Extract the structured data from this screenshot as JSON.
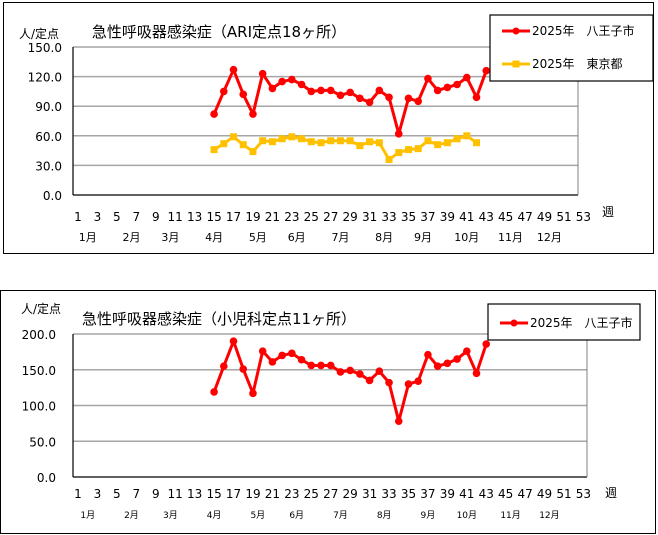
{
  "chart_data": [
    {
      "type": "line",
      "title": "急性呼吸器感染症（ARI定点18ヶ所）",
      "ylabel": "人/定点",
      "xlabel": "週",
      "ylim": [
        0,
        150
      ],
      "yticks": [
        "0.0",
        "30.0",
        "60.0",
        "90.0",
        "120.0",
        "150.0"
      ],
      "xticks": [
        "1",
        "3",
        "5",
        "7",
        "9",
        "11",
        "13",
        "15",
        "17",
        "19",
        "21",
        "23",
        "25",
        "27",
        "29",
        "31",
        "33",
        "35",
        "37",
        "39",
        "41",
        "43",
        "45",
        "47",
        "49",
        "51",
        "53"
      ],
      "months": [
        {
          "label": "1月",
          "week": 2
        },
        {
          "label": "2月",
          "week": 6.5
        },
        {
          "label": "3月",
          "week": 10.5
        },
        {
          "label": "4月",
          "week": 15
        },
        {
          "label": "5月",
          "week": 19.5
        },
        {
          "label": "6月",
          "week": 23.5
        },
        {
          "label": "7月",
          "week": 28
        },
        {
          "label": "8月",
          "week": 32.5
        },
        {
          "label": "9月",
          "week": 36.5
        },
        {
          "label": "10月",
          "week": 41
        },
        {
          "label": "11月",
          "week": 45.5
        },
        {
          "label": "12月",
          "week": 49.5
        }
      ],
      "grid": true,
      "legend_position": "top-right",
      "x": [
        15,
        16,
        17,
        18,
        19,
        20,
        21,
        22,
        23,
        24,
        25,
        26,
        27,
        28,
        29,
        30,
        31,
        32,
        33,
        34,
        35,
        36,
        37,
        38,
        39,
        40,
        41,
        42,
        43
      ],
      "series": [
        {
          "name": "2025年　八王子市",
          "color": "#ff0000",
          "marker": "circle",
          "values": [
            82,
            105,
            127,
            102,
            82,
            123,
            108,
            115,
            117,
            112,
            105,
            106,
            106,
            101,
            104,
            98,
            94,
            106,
            99,
            62,
            98,
            95,
            118,
            106,
            109,
            112,
            119,
            99,
            126
          ]
        },
        {
          "name": "2025年　東京都",
          "color": "#ffc000",
          "marker": "square",
          "values": [
            46,
            52,
            59,
            51,
            44,
            55,
            54,
            57,
            59,
            57,
            54,
            53,
            55,
            55,
            55,
            50,
            54,
            53,
            36,
            43,
            46,
            47,
            55,
            51,
            53,
            57,
            60,
            53,
            null
          ]
        }
      ]
    },
    {
      "type": "line",
      "title": "急性呼吸器感染症（小児科定点11ヶ所）",
      "ylabel": "人/定点",
      "xlabel": "週",
      "ylim": [
        0,
        200
      ],
      "yticks": [
        "0.0",
        "50.0",
        "100.0",
        "150.0",
        "200.0"
      ],
      "xticks": [
        "1",
        "3",
        "5",
        "7",
        "9",
        "11",
        "13",
        "15",
        "17",
        "19",
        "21",
        "23",
        "25",
        "27",
        "29",
        "31",
        "33",
        "35",
        "37",
        "39",
        "41",
        "43",
        "45",
        "47",
        "49",
        "51",
        "53"
      ],
      "months": [
        {
          "label": "1月",
          "week": 2
        },
        {
          "label": "2月",
          "week": 6.5
        },
        {
          "label": "3月",
          "week": 10.5
        },
        {
          "label": "4月",
          "week": 15
        },
        {
          "label": "5月",
          "week": 19.5
        },
        {
          "label": "6月",
          "week": 23.5
        },
        {
          "label": "7月",
          "week": 28
        },
        {
          "label": "8月",
          "week": 32.5
        },
        {
          "label": "9月",
          "week": 37
        },
        {
          "label": "10月",
          "week": 41
        },
        {
          "label": "11月",
          "week": 45.5
        },
        {
          "label": "12月",
          "week": 49.5
        }
      ],
      "grid": true,
      "legend_position": "top-right",
      "x": [
        15,
        16,
        17,
        18,
        19,
        20,
        21,
        22,
        23,
        24,
        25,
        26,
        27,
        28,
        29,
        30,
        31,
        32,
        33,
        34,
        35,
        36,
        37,
        38,
        39,
        40,
        41,
        42,
        43
      ],
      "series": [
        {
          "name": "2025年　八王子市",
          "color": "#ff0000",
          "marker": "circle",
          "values": [
            119,
            155,
            190,
            151,
            117,
            176,
            161,
            170,
            173,
            164,
            156,
            156,
            156,
            147,
            149,
            144,
            135,
            148,
            132,
            78,
            130,
            134,
            171,
            155,
            159,
            165,
            176,
            145,
            186
          ]
        }
      ]
    }
  ],
  "charts": {
    "c1": {
      "title": "急性呼吸器感染症（ARI定点18ヶ所）",
      "ylabel": "人/定点",
      "xlabel": "週",
      "legend": [
        "2025年　八王子市",
        "2025年　東京都"
      ]
    },
    "c2": {
      "title": "急性呼吸器感染症（小児科定点11ヶ所）",
      "ylabel": "人/定点",
      "xlabel": "週",
      "legend": [
        "2025年　八王子市"
      ]
    }
  }
}
